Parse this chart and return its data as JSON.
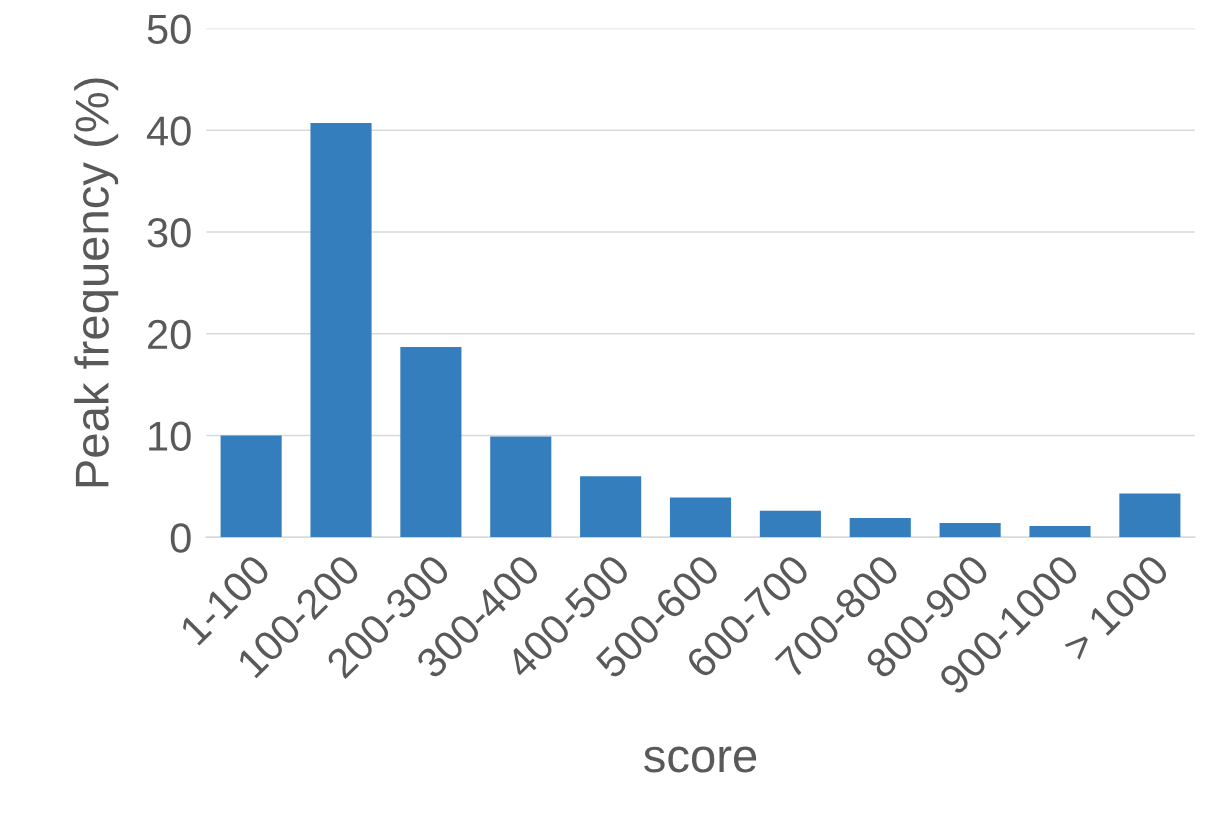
{
  "chart_data": {
    "type": "bar",
    "xlabel": "score",
    "ylabel": "Peak frequency (%)",
    "categories": [
      "1-100",
      "100-200",
      "200-300",
      "300-400",
      "400-500",
      "500-600",
      "600-700",
      "700-800",
      "800-900",
      "900-1000",
      "> 1000"
    ],
    "values": [
      10.0,
      40.7,
      18.7,
      9.9,
      6.0,
      3.9,
      2.6,
      1.9,
      1.4,
      1.1,
      4.3
    ],
    "color": "#357ebd",
    "ylim": [
      0,
      50
    ],
    "yticks": [
      0,
      10,
      20,
      30,
      40,
      50
    ],
    "grid": "y"
  }
}
